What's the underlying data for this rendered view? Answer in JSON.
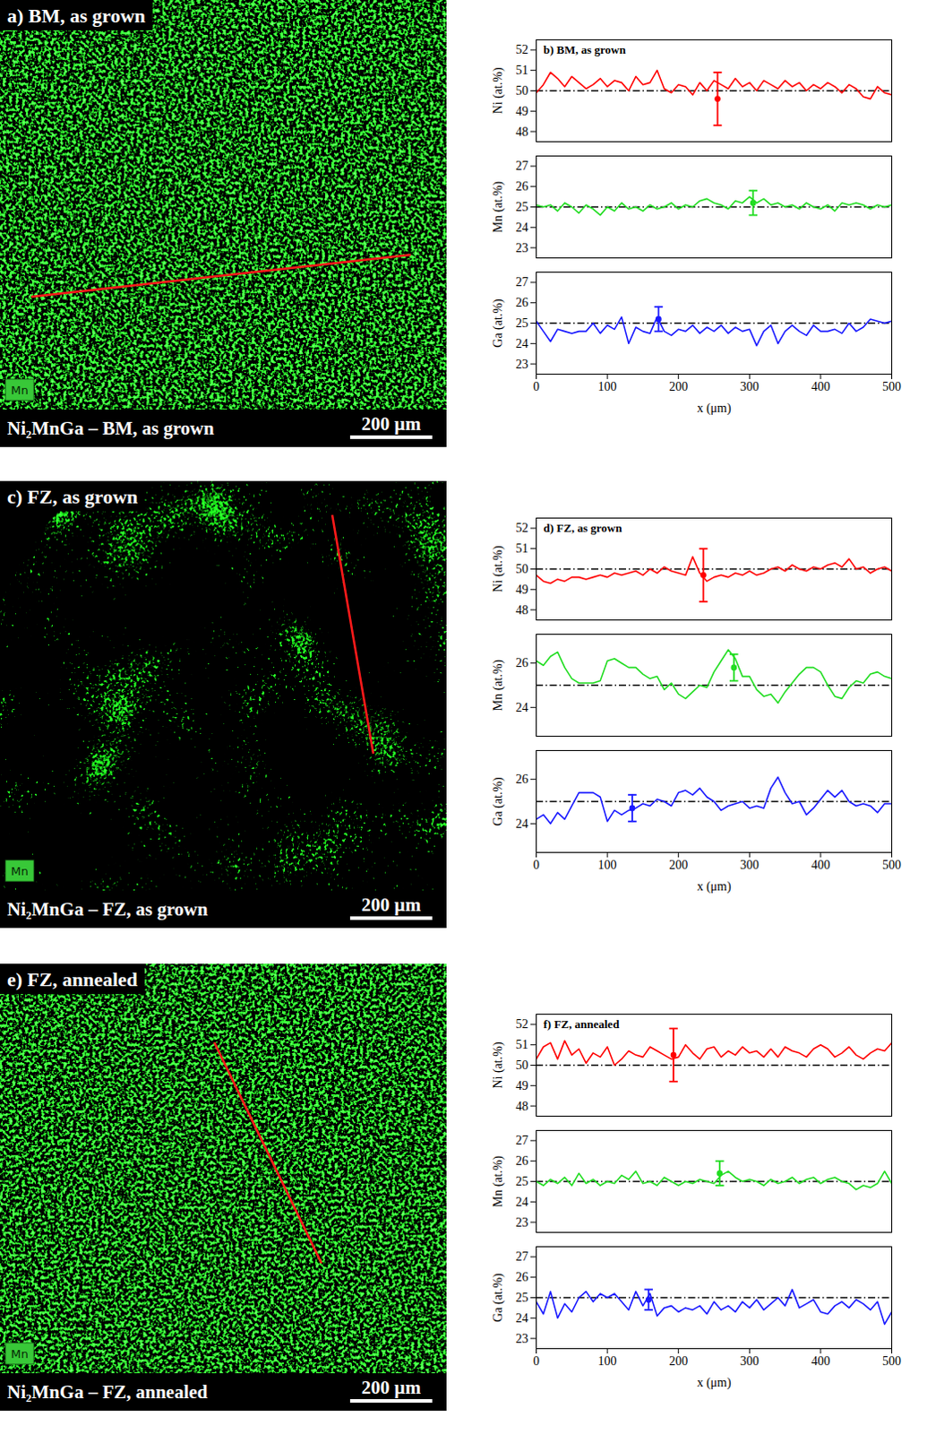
{
  "images": [
    {
      "title": "a) BM, as grown",
      "caption": "Ni₂MnGa – BM, as grown",
      "scale_bar": "200 µm",
      "element": "Mn"
    },
    {
      "title": "c) FZ, as grown",
      "caption": "Ni₂MnGa – FZ, as grown",
      "scale_bar": "200 µm",
      "element": "Mn"
    },
    {
      "title": "e) FZ, annealed",
      "caption": "Ni₂MnGa – FZ, annealed",
      "scale_bar": "200 µm",
      "element": "Mn"
    }
  ],
  "chart_data": [
    {
      "type": "line",
      "title": "b) BM, as grown",
      "xlabel": "x (μm)",
      "xlim": [
        0,
        500
      ],
      "xticks": [
        0,
        100,
        200,
        300,
        400,
        500
      ],
      "x": [
        0,
        10,
        20,
        30,
        40,
        50,
        60,
        70,
        80,
        90,
        100,
        110,
        120,
        130,
        140,
        150,
        160,
        170,
        180,
        190,
        200,
        210,
        220,
        230,
        240,
        250,
        260,
        270,
        280,
        290,
        300,
        310,
        320,
        330,
        340,
        350,
        360,
        370,
        380,
        390,
        400,
        410,
        420,
        430,
        440,
        450,
        460,
        470,
        480,
        490,
        500
      ],
      "panels": [
        {
          "ylabel": "Ni (at.%)",
          "ylim": [
            47.5,
            52.5
          ],
          "yticks": [
            48,
            49,
            50,
            51,
            52
          ],
          "color": "#ff0000",
          "reference_line": 50,
          "error_bar": {
            "x": 255,
            "y": 49.6,
            "err": 1.3
          },
          "values": [
            49.9,
            50.3,
            50.9,
            50.6,
            50.2,
            50.7,
            50.4,
            50.1,
            50.3,
            50.6,
            50.2,
            50.5,
            50.4,
            50.0,
            50.7,
            50.3,
            50.4,
            51.0,
            50.1,
            49.9,
            50.3,
            50.2,
            49.8,
            50.4,
            50.0,
            50.5,
            50.3,
            50.1,
            50.6,
            50.2,
            50.4,
            50.0,
            50.5,
            50.3,
            50.1,
            50.5,
            50.2,
            50.4,
            50.0,
            50.3,
            50.1,
            50.4,
            50.2,
            49.9,
            50.3,
            50.1,
            49.7,
            49.6,
            50.2,
            49.9,
            49.8
          ]
        },
        {
          "ylabel": "Mn (at.%)",
          "ylim": [
            22.5,
            27.5
          ],
          "yticks": [
            23,
            24,
            25,
            26,
            27
          ],
          "color": "#22dd22",
          "reference_line": 25,
          "error_bar": {
            "x": 305,
            "y": 25.2,
            "err": 0.6
          },
          "values": [
            25.1,
            25.0,
            25.1,
            24.8,
            25.2,
            25.0,
            24.7,
            25.1,
            24.9,
            24.6,
            25.0,
            24.8,
            25.2,
            24.9,
            25.0,
            24.8,
            25.1,
            24.9,
            25.0,
            25.2,
            24.9,
            25.1,
            25.0,
            25.3,
            25.4,
            25.2,
            25.1,
            24.9,
            25.3,
            25.2,
            25.5,
            25.2,
            25.4,
            25.1,
            25.2,
            25.0,
            25.1,
            24.9,
            25.2,
            25.0,
            24.9,
            25.1,
            24.8,
            25.2,
            25.1,
            25.2,
            25.1,
            24.9,
            25.1,
            25.0,
            25.1
          ]
        },
        {
          "ylabel": "Ga (at.%)",
          "ylim": [
            22.5,
            27.5
          ],
          "yticks": [
            23,
            24,
            25,
            26,
            27
          ],
          "color": "#1a1aff",
          "reference_line": 25,
          "error_bar": {
            "x": 172,
            "y": 25.2,
            "err": 0.6
          },
          "values": [
            25.1,
            24.6,
            24.1,
            24.7,
            24.6,
            24.5,
            24.6,
            24.6,
            25.0,
            24.5,
            24.9,
            24.7,
            25.3,
            24.0,
            24.8,
            24.6,
            24.5,
            25.3,
            24.6,
            24.4,
            24.7,
            24.6,
            24.9,
            24.5,
            24.8,
            24.6,
            24.9,
            24.5,
            24.8,
            24.6,
            24.7,
            23.9,
            24.6,
            24.9,
            24.0,
            24.6,
            24.9,
            24.6,
            24.4,
            24.9,
            24.6,
            24.6,
            24.7,
            24.5,
            25.0,
            24.6,
            24.8,
            25.2,
            25.1,
            25.0,
            25.1
          ]
        }
      ]
    },
    {
      "type": "line",
      "title": "d) FZ, as grown",
      "xlabel": "x (μm)",
      "xlim": [
        0,
        500
      ],
      "xticks": [
        0,
        100,
        200,
        300,
        400,
        500
      ],
      "x": [
        0,
        10,
        20,
        30,
        40,
        50,
        60,
        70,
        80,
        90,
        100,
        110,
        120,
        130,
        140,
        150,
        160,
        170,
        180,
        190,
        200,
        210,
        220,
        230,
        240,
        250,
        260,
        270,
        280,
        290,
        300,
        310,
        320,
        330,
        340,
        350,
        360,
        370,
        380,
        390,
        400,
        410,
        420,
        430,
        440,
        450,
        460,
        470,
        480,
        490,
        500
      ],
      "panels": [
        {
          "ylabel": "Ni (at.%)",
          "ylim": [
            47.5,
            52.5
          ],
          "yticks": [
            48,
            49,
            50,
            51,
            52
          ],
          "color": "#ff0000",
          "reference_line": 50,
          "error_bar": {
            "x": 235,
            "y": 49.7,
            "err": 1.3
          },
          "values": [
            49.7,
            49.4,
            49.3,
            49.5,
            49.4,
            49.6,
            49.6,
            49.5,
            49.6,
            49.7,
            49.6,
            49.8,
            49.7,
            49.8,
            49.9,
            49.7,
            50.0,
            49.8,
            50.1,
            49.9,
            49.8,
            49.7,
            50.6,
            49.8,
            49.4,
            49.6,
            49.7,
            49.6,
            49.8,
            49.7,
            49.9,
            49.7,
            49.8,
            50.0,
            50.1,
            49.9,
            50.2,
            50.0,
            49.9,
            50.1,
            50.0,
            50.2,
            50.3,
            50.1,
            50.5,
            50.0,
            50.1,
            49.8,
            50.0,
            50.1,
            49.9
          ]
        },
        {
          "ylabel": "Mn (at.%)",
          "ylim": [
            22.7,
            27.3
          ],
          "yticks": [
            24,
            26
          ],
          "color": "#22dd22",
          "reference_line": 25,
          "error_bar": {
            "x": 278,
            "y": 25.8,
            "err": 0.6
          },
          "values": [
            26.1,
            25.9,
            26.3,
            26.5,
            25.8,
            25.3,
            25.1,
            25.1,
            25.1,
            25.2,
            26.1,
            26.2,
            26.0,
            25.8,
            25.8,
            25.5,
            25.3,
            25.4,
            24.8,
            25.1,
            24.6,
            24.4,
            24.7,
            25.0,
            24.9,
            25.6,
            26.1,
            26.6,
            26.2,
            25.4,
            25.4,
            24.8,
            24.5,
            24.6,
            24.2,
            24.7,
            25.1,
            25.5,
            25.8,
            25.8,
            25.6,
            25.0,
            24.5,
            24.4,
            24.9,
            25.2,
            25.1,
            25.5,
            25.6,
            25.4,
            25.3
          ]
        },
        {
          "ylabel": "Ga (at.%)",
          "ylim": [
            22.7,
            27.3
          ],
          "yticks": [
            24,
            26
          ],
          "color": "#1a1aff",
          "reference_line": 25,
          "error_bar": {
            "x": 135,
            "y": 24.7,
            "err": 0.6
          },
          "values": [
            24.2,
            24.4,
            24.0,
            24.5,
            24.2,
            24.8,
            25.4,
            25.4,
            25.4,
            25.2,
            24.1,
            24.6,
            24.4,
            24.6,
            24.7,
            24.9,
            24.8,
            25.1,
            25.0,
            24.8,
            25.4,
            25.5,
            25.3,
            25.6,
            25.2,
            25.0,
            24.6,
            24.8,
            24.9,
            25.0,
            24.7,
            24.8,
            24.7,
            25.6,
            26.1,
            25.4,
            24.9,
            25.0,
            24.4,
            24.7,
            25.1,
            25.5,
            25.2,
            25.5,
            25.0,
            24.8,
            24.9,
            24.8,
            24.5,
            24.9,
            24.9
          ]
        }
      ]
    },
    {
      "type": "line",
      "title": "f) FZ, annealed",
      "xlabel": "x (μm)",
      "xlim": [
        0,
        500
      ],
      "xticks": [
        0,
        100,
        200,
        300,
        400,
        500
      ],
      "x": [
        0,
        10,
        20,
        30,
        40,
        50,
        60,
        70,
        80,
        90,
        100,
        110,
        120,
        130,
        140,
        150,
        160,
        170,
        180,
        190,
        200,
        210,
        220,
        230,
        240,
        250,
        260,
        270,
        280,
        290,
        300,
        310,
        320,
        330,
        340,
        350,
        360,
        370,
        380,
        390,
        400,
        410,
        420,
        430,
        440,
        450,
        460,
        470,
        480,
        490,
        500
      ],
      "panels": [
        {
          "ylabel": "Ni (at.%)",
          "ylim": [
            47.5,
            52.5
          ],
          "yticks": [
            48,
            49,
            50,
            51,
            52
          ],
          "color": "#ff0000",
          "reference_line": 50,
          "error_bar": {
            "x": 193,
            "y": 50.5,
            "err": 1.3
          },
          "values": [
            50.3,
            50.9,
            51.1,
            50.3,
            51.2,
            50.5,
            50.8,
            50.1,
            50.6,
            50.4,
            50.9,
            50.0,
            50.3,
            50.7,
            50.5,
            50.4,
            50.9,
            50.7,
            50.5,
            50.3,
            50.4,
            51.0,
            50.6,
            50.3,
            50.8,
            50.9,
            50.4,
            50.7,
            50.5,
            50.9,
            50.6,
            50.7,
            50.4,
            50.8,
            50.4,
            50.9,
            50.7,
            50.6,
            50.4,
            50.8,
            51.0,
            50.8,
            50.4,
            50.6,
            50.9,
            50.5,
            50.3,
            50.6,
            50.8,
            50.7,
            51.1
          ]
        },
        {
          "ylabel": "Mn (at.%)",
          "ylim": [
            22.5,
            27.5
          ],
          "yticks": [
            23,
            24,
            25,
            26,
            27
          ],
          "color": "#22dd22",
          "reference_line": 25,
          "error_bar": {
            "x": 258,
            "y": 25.4,
            "err": 0.6
          },
          "values": [
            25.0,
            24.8,
            25.1,
            24.9,
            25.2,
            24.8,
            25.4,
            24.9,
            25.1,
            24.8,
            25.0,
            24.9,
            25.3,
            25.1,
            25.5,
            24.9,
            25.0,
            24.8,
            25.2,
            25.0,
            24.8,
            25.0,
            24.9,
            25.1,
            25.0,
            24.9,
            25.3,
            25.5,
            25.2,
            25.0,
            25.1,
            25.0,
            24.8,
            25.1,
            24.9,
            25.0,
            25.2,
            24.9,
            25.1,
            25.2,
            24.9,
            25.1,
            25.2,
            25.0,
            24.9,
            24.6,
            24.8,
            24.7,
            24.9,
            25.5,
            24.9
          ]
        },
        {
          "ylabel": "Ga (at.%)",
          "ylim": [
            22.5,
            27.5
          ],
          "yticks": [
            23,
            24,
            25,
            26,
            27
          ],
          "color": "#1a1aff",
          "reference_line": 25,
          "error_bar": {
            "x": 158,
            "y": 24.9,
            "err": 0.5
          },
          "values": [
            24.8,
            24.2,
            25.3,
            24.0,
            24.7,
            24.3,
            25.0,
            25.3,
            24.8,
            25.2,
            25.0,
            25.2,
            24.8,
            24.4,
            25.3,
            24.6,
            25.2,
            24.1,
            24.5,
            24.6,
            24.3,
            24.5,
            24.4,
            24.6,
            24.2,
            24.8,
            24.4,
            24.6,
            24.3,
            24.8,
            24.5,
            24.9,
            24.4,
            24.7,
            25.0,
            24.6,
            25.4,
            24.5,
            24.7,
            24.9,
            24.3,
            24.2,
            24.6,
            24.8,
            24.5,
            24.9,
            24.7,
            24.4,
            24.8,
            23.7,
            24.3
          ]
        }
      ]
    }
  ]
}
